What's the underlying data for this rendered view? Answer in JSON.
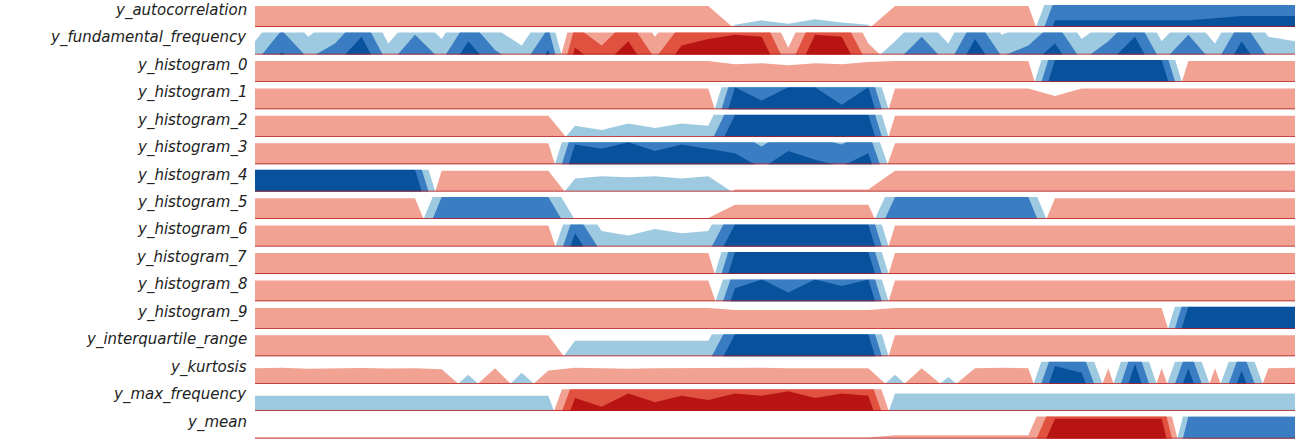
{
  "chart_data": {
    "type": "horizon",
    "x": [
      0,
      1,
      2,
      3,
      4,
      5,
      6,
      7,
      8,
      9,
      10,
      11,
      12,
      13,
      14,
      15,
      16,
      17,
      18,
      19,
      20,
      21,
      22,
      23,
      24,
      25,
      26,
      27,
      28,
      29,
      30,
      31,
      32,
      33,
      34,
      35,
      36,
      37,
      38,
      39
    ],
    "xlim": [
      0,
      39
    ],
    "ylim": [
      -3,
      3
    ],
    "yticks": [
      -3,
      -2,
      -1,
      0,
      1,
      2,
      3
    ],
    "colors": [
      "#08519c",
      "#3a7dc2",
      "#9ecae1",
      "#f1a293",
      "#e0523f",
      "#b81414"
    ],
    "grid": false,
    "tick_labels": false,
    "series": [
      {
        "name": "y_autocorrelation",
        "values": [
          0.95,
          0.95,
          0.95,
          0.95,
          0.95,
          0.95,
          0.95,
          0.95,
          0.95,
          0.95,
          0.95,
          0.95,
          0.95,
          0.95,
          0.95,
          0.95,
          0.95,
          0.95,
          -0.1,
          -0.3,
          -0.15,
          -0.35,
          -0.2,
          -0.1,
          0.95,
          0.95,
          0.95,
          0.95,
          0.95,
          0.95,
          -2.3,
          -2.3,
          -2.3,
          -2.3,
          -2.3,
          -2.3,
          -2.4,
          -2.5,
          -2.5,
          -2.5
        ]
      },
      {
        "name": "y_fundamental_frequency",
        "values": [
          -0.6,
          -2.1,
          -0.8,
          -1.5,
          -2.8,
          -0.5,
          -1.9,
          -0.7,
          -2.6,
          -1.2,
          -0.4,
          -2.2,
          2.3,
          1.4,
          2.6,
          0.8,
          2.4,
          2.7,
          2.9,
          2.8,
          0.3,
          2.9,
          2.8,
          0.5,
          -0.6,
          -1.8,
          -0.5,
          -2.7,
          -0.9,
          -1.4,
          -2.5,
          -0.7,
          -1.6,
          -2.8,
          -0.6,
          -1.9,
          -0.5,
          -2.6,
          -0.8,
          -0.6
        ]
      },
      {
        "name": "y_histogram_0",
        "values": [
          0.95,
          0.95,
          0.95,
          0.95,
          0.95,
          0.95,
          0.95,
          0.95,
          0.95,
          0.95,
          0.95,
          0.95,
          0.95,
          0.95,
          0.95,
          0.95,
          0.95,
          0.95,
          0.8,
          0.85,
          0.75,
          0.85,
          0.8,
          0.9,
          0.95,
          0.95,
          0.95,
          0.95,
          0.95,
          0.95,
          -3,
          -3,
          -3,
          -3,
          -3,
          0.95,
          0.95,
          0.95,
          0.95,
          0.95
        ]
      },
      {
        "name": "y_histogram_1",
        "values": [
          0.95,
          0.95,
          0.95,
          0.95,
          0.95,
          0.95,
          0.95,
          0.95,
          0.95,
          0.95,
          0.95,
          0.95,
          0.95,
          0.95,
          0.95,
          0.95,
          0.95,
          0.95,
          -3,
          -2.4,
          -3,
          -3,
          -2.2,
          -3,
          0.95,
          0.95,
          0.95,
          0.95,
          0.95,
          0.95,
          0.6,
          0.95,
          0.95,
          0.95,
          0.95,
          0.95,
          0.95,
          0.95,
          0.95,
          0.95
        ]
      },
      {
        "name": "y_histogram_2",
        "values": [
          0.95,
          0.95,
          0.95,
          0.95,
          0.95,
          0.95,
          0.95,
          0.95,
          0.95,
          0.95,
          0.95,
          0.95,
          -0.5,
          -0.3,
          -0.6,
          -0.4,
          -0.6,
          -0.5,
          -3,
          -3,
          -3,
          -3,
          -3,
          -3,
          0.95,
          0.95,
          0.95,
          0.95,
          0.95,
          0.95,
          0.95,
          0.95,
          0.95,
          0.95,
          0.95,
          0.95,
          0.95,
          0.95,
          0.95,
          0.95
        ]
      },
      {
        "name": "y_histogram_3",
        "values": [
          0.95,
          0.95,
          0.95,
          0.95,
          0.95,
          0.95,
          0.95,
          0.95,
          0.95,
          0.95,
          0.95,
          0.95,
          -2.9,
          -2.7,
          -3,
          -2.6,
          -2.9,
          -2.7,
          -2.5,
          -1.8,
          -2.6,
          -2.2,
          -1.9,
          -2.5,
          0.95,
          0.95,
          0.95,
          0.95,
          0.95,
          0.95,
          0.95,
          0.95,
          0.95,
          0.95,
          0.95,
          0.95,
          0.95,
          0.95,
          0.95,
          0.95
        ]
      },
      {
        "name": "y_histogram_4",
        "values": [
          -3,
          -3,
          -3,
          -3,
          -3,
          -3,
          -3,
          0.95,
          0.95,
          0.95,
          0.95,
          0.95,
          -0.6,
          -0.7,
          -0.65,
          -0.7,
          -0.6,
          -0.7,
          0.1,
          0.1,
          0.1,
          0.1,
          0.1,
          0.1,
          0.95,
          0.95,
          0.95,
          0.95,
          0.95,
          0.95,
          0.95,
          0.95,
          0.95,
          0.95,
          0.95,
          0.95,
          0.95,
          0.95,
          0.95,
          0.95
        ]
      },
      {
        "name": "y_histogram_5",
        "values": [
          0.95,
          0.95,
          0.95,
          0.95,
          0.95,
          0.95,
          0.95,
          -2,
          -2,
          -2,
          -2,
          -2,
          0.05,
          0.05,
          0.05,
          0.05,
          0.05,
          0.05,
          0.65,
          0.65,
          0.65,
          0.65,
          0.65,
          0.65,
          -2,
          -2,
          -2,
          -2,
          -2,
          -2,
          0.95,
          0.95,
          0.95,
          0.95,
          0.95,
          0.95,
          0.95,
          0.95,
          0.95,
          0.95
        ]
      },
      {
        "name": "y_histogram_6",
        "values": [
          0.95,
          0.95,
          0.95,
          0.95,
          0.95,
          0.95,
          0.95,
          0.95,
          0.95,
          0.95,
          0.95,
          0.95,
          -2.6,
          -0.7,
          -0.5,
          -0.8,
          -0.6,
          -0.7,
          -3,
          -3,
          -3,
          -3,
          -3,
          -3,
          0.95,
          0.95,
          0.95,
          0.95,
          0.95,
          0.95,
          0.95,
          0.95,
          0.95,
          0.95,
          0.95,
          0.95,
          0.95,
          0.95,
          0.95,
          0.95
        ]
      },
      {
        "name": "y_histogram_7",
        "values": [
          0.95,
          0.95,
          0.95,
          0.95,
          0.95,
          0.95,
          0.95,
          0.95,
          0.95,
          0.95,
          0.95,
          0.95,
          0.95,
          0.95,
          0.95,
          0.95,
          0.95,
          0.95,
          -3,
          -3,
          -3,
          -3,
          -3,
          -3,
          0.95,
          0.95,
          0.95,
          0.95,
          0.95,
          0.95,
          0.95,
          0.95,
          0.95,
          0.95,
          0.95,
          0.95,
          0.95,
          0.95,
          0.95,
          0.95
        ]
      },
      {
        "name": "y_histogram_8",
        "values": [
          0.95,
          0.95,
          0.95,
          0.95,
          0.95,
          0.95,
          0.95,
          0.95,
          0.95,
          0.95,
          0.95,
          0.95,
          0.95,
          0.95,
          0.95,
          0.95,
          0.95,
          0.95,
          -2.6,
          -3,
          -2.4,
          -3,
          -2.7,
          -3,
          0.95,
          0.95,
          0.95,
          0.95,
          0.95,
          0.95,
          0.95,
          0.95,
          0.95,
          0.95,
          0.95,
          0.95,
          0.95,
          0.95,
          0.95,
          0.95
        ]
      },
      {
        "name": "y_histogram_9",
        "values": [
          0.95,
          0.95,
          0.95,
          0.95,
          0.95,
          0.95,
          0.95,
          0.95,
          0.95,
          0.95,
          0.95,
          0.95,
          0.95,
          0.95,
          0.95,
          0.95,
          0.95,
          0.95,
          0.85,
          0.85,
          0.85,
          0.85,
          0.85,
          0.85,
          0.95,
          0.95,
          0.95,
          0.95,
          0.95,
          0.95,
          0.95,
          0.95,
          0.95,
          0.95,
          0.95,
          -3,
          -3,
          -3,
          -3,
          -3
        ]
      },
      {
        "name": "y_interquartile_range",
        "values": [
          0.95,
          0.95,
          0.95,
          0.95,
          0.95,
          0.95,
          0.95,
          0.95,
          0.95,
          0.95,
          0.95,
          0.95,
          -0.7,
          -0.7,
          -0.7,
          -0.7,
          -0.7,
          -0.7,
          -3,
          -3,
          -3,
          -3,
          -3,
          -3,
          0.95,
          0.95,
          0.95,
          0.95,
          0.95,
          0.95,
          0.95,
          0.95,
          0.95,
          0.95,
          0.95,
          0.95,
          0.95,
          0.95,
          0.95,
          0.95
        ]
      },
      {
        "name": "y_kurtosis",
        "values": [
          0.7,
          0.72,
          0.68,
          0.7,
          0.71,
          0.69,
          0.7,
          0.65,
          -0.4,
          0.7,
          -0.5,
          0.6,
          0.72,
          0.7,
          0.68,
          0.7,
          0.71,
          0.7,
          0.7,
          0.72,
          0.7,
          0.69,
          0.7,
          0.7,
          -0.4,
          0.7,
          -0.3,
          0.7,
          0.72,
          0.7,
          -2.8,
          -2.5,
          0.7,
          -2.9,
          0.7,
          -2.7,
          0.7,
          -2.6,
          0.7,
          0.72
        ]
      },
      {
        "name": "y_max_frequency",
        "values": [
          -0.7,
          -0.7,
          -0.7,
          -0.7,
          -0.7,
          -0.7,
          -0.7,
          -0.7,
          -0.7,
          -0.7,
          -0.7,
          -0.7,
          2.6,
          2.2,
          2.8,
          2.4,
          2.7,
          2.5,
          2.8,
          2.7,
          2.9,
          2.6,
          2.8,
          2.7,
          -0.8,
          -0.8,
          -0.8,
          -0.8,
          -0.8,
          -0.8,
          -0.8,
          -0.8,
          -0.8,
          -0.8,
          -0.8,
          -0.8,
          -0.8,
          -0.8,
          -0.8,
          -0.8
        ]
      },
      {
        "name": "y_mean",
        "values": [
          0.05,
          0.05,
          0.05,
          0.05,
          0.05,
          0.05,
          0.05,
          0.05,
          0.05,
          0.05,
          0.05,
          0.05,
          0.05,
          0.05,
          0.05,
          0.05,
          0.05,
          0.05,
          0.05,
          0.05,
          0.05,
          0.05,
          0.05,
          0.05,
          0.15,
          0.15,
          0.15,
          0.15,
          0.15,
          0.15,
          2.9,
          2.9,
          2.9,
          2.9,
          2.9,
          -2,
          -2,
          -2,
          -2,
          -2
        ]
      }
    ]
  }
}
